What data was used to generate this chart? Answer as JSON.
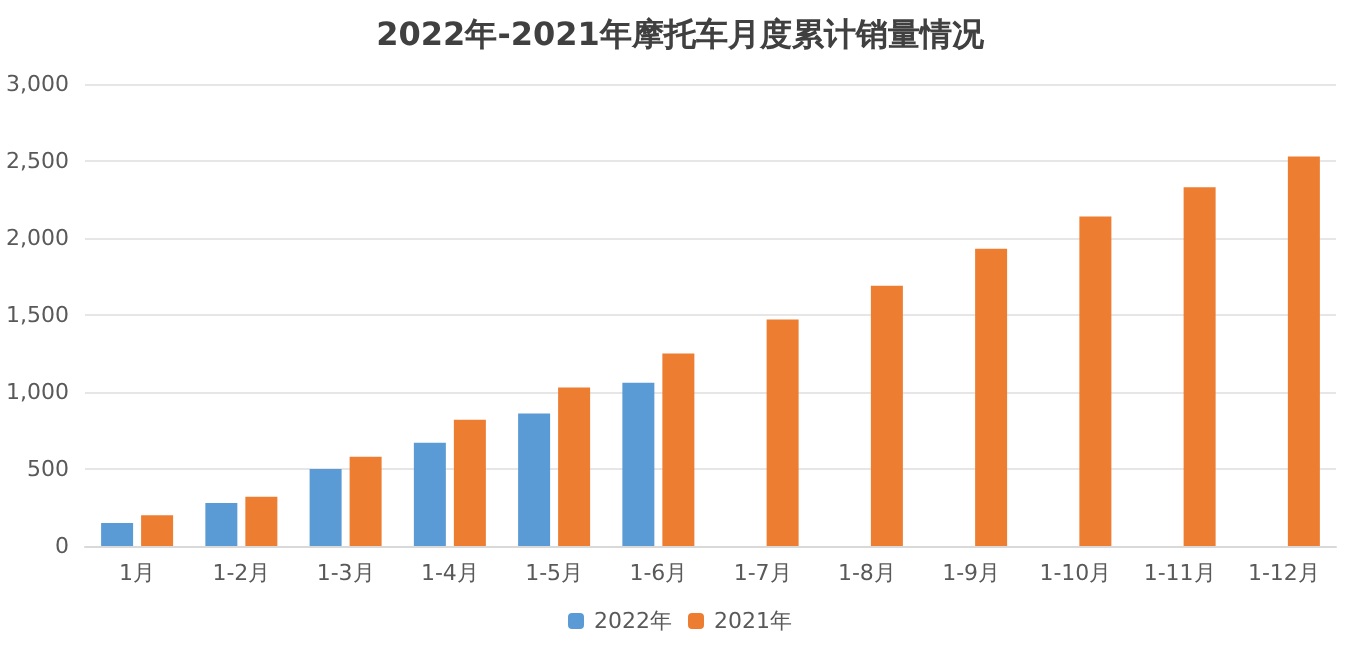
{
  "chart_data": {
    "type": "bar",
    "title": "2022年-2021年摩托车月度累计销量情况",
    "categories": [
      "1月",
      "1-2月",
      "1-3月",
      "1-4月",
      "1-5月",
      "1-6月",
      "1-7月",
      "1-8月",
      "1-9月",
      "1-10月",
      "1-11月",
      "1-12月"
    ],
    "series": [
      {
        "name": "2022年",
        "color": "#5b9bd5",
        "values": [
          150,
          280,
          500,
          670,
          860,
          1060,
          null,
          null,
          null,
          null,
          null,
          null
        ]
      },
      {
        "name": "2021年",
        "color": "#ed7d31",
        "values": [
          200,
          320,
          580,
          820,
          1030,
          1250,
          1470,
          1690,
          1930,
          2140,
          2330,
          2530
        ]
      }
    ],
    "ylim": [
      0,
      3000
    ],
    "yticks": [
      0,
      500,
      {
        "value": 1000,
        "label": "1,000"
      },
      {
        "value": 1500,
        "label": "1,500"
      },
      {
        "value": 2000,
        "label": "2,000"
      },
      {
        "value": 2500,
        "label": "2,500"
      },
      {
        "value": 3000,
        "label": "3,000"
      }
    ],
    "grid": "y",
    "legend": "bottom"
  }
}
